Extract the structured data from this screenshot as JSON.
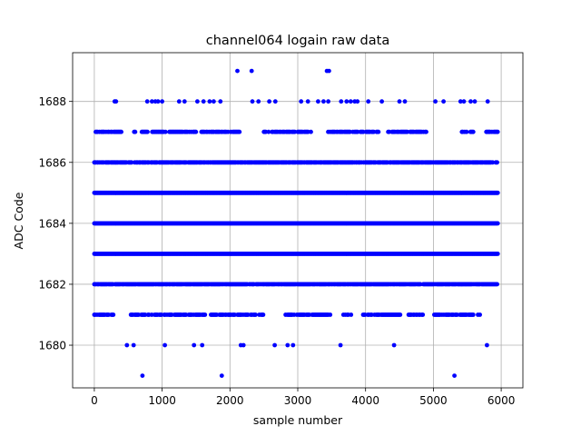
{
  "chart_data": {
    "type": "scatter",
    "title": "channel064 logain raw data",
    "xlabel": "sample number",
    "ylabel": "ADC Code",
    "xlim": [
      -320,
      6320
    ],
    "ylim": [
      1678.6,
      1689.6
    ],
    "xticks": [
      0,
      1000,
      2000,
      3000,
      4000,
      5000,
      6000
    ],
    "yticks": [
      1680,
      1682,
      1684,
      1686,
      1688
    ],
    "grid": true,
    "marker_color": "#0000ff",
    "n_samples": 5950,
    "dense_levels": [
      1683,
      1684,
      1685
    ],
    "medium_levels": [
      1682,
      1686
    ],
    "sparse_levels": [
      {
        "value": 1681,
        "ranges": [
          [
            0,
            280
          ],
          [
            540,
            1000
          ],
          [
            1030,
            1640
          ],
          [
            1720,
            2500
          ],
          [
            2820,
            3500
          ],
          [
            3660,
            3800
          ],
          [
            3950,
            4520
          ],
          [
            4620,
            4850
          ],
          [
            5000,
            5700
          ]
        ]
      },
      {
        "value": 1687,
        "ranges": [
          [
            20,
            420
          ],
          [
            560,
            620
          ],
          [
            700,
            1500
          ],
          [
            1580,
            2150
          ],
          [
            2500,
            2580
          ],
          [
            2620,
            3200
          ],
          [
            3420,
            4200
          ],
          [
            4320,
            4900
          ],
          [
            5420,
            5600
          ],
          [
            5780,
            5950
          ]
        ]
      }
    ],
    "series": [
      {
        "points": [
          [
            300,
            1688
          ],
          [
            320,
            1688
          ],
          [
            780,
            1688
          ],
          [
            850,
            1688
          ],
          [
            900,
            1688
          ],
          [
            940,
            1688
          ],
          [
            1000,
            1688
          ],
          [
            1250,
            1688
          ],
          [
            1330,
            1688
          ],
          [
            1520,
            1688
          ],
          [
            1610,
            1688
          ],
          [
            1700,
            1688
          ],
          [
            1760,
            1688
          ],
          [
            1860,
            1688
          ],
          [
            2330,
            1688
          ],
          [
            2420,
            1688
          ],
          [
            2580,
            1688
          ],
          [
            2670,
            1688
          ],
          [
            3050,
            1688
          ],
          [
            3150,
            1688
          ],
          [
            3300,
            1688
          ],
          [
            3380,
            1688
          ],
          [
            3450,
            1688
          ],
          [
            3640,
            1688
          ],
          [
            3720,
            1688
          ],
          [
            3780,
            1688
          ],
          [
            3840,
            1688
          ],
          [
            3880,
            1688
          ],
          [
            4040,
            1688
          ],
          [
            4240,
            1688
          ],
          [
            4500,
            1688
          ],
          [
            4580,
            1688
          ],
          [
            5030,
            1688
          ],
          [
            5150,
            1688
          ],
          [
            5400,
            1688
          ],
          [
            5450,
            1688
          ],
          [
            5550,
            1688
          ],
          [
            5610,
            1688
          ],
          [
            5800,
            1688
          ],
          [
            2110,
            1689
          ],
          [
            2320,
            1689
          ],
          [
            3430,
            1689
          ],
          [
            3460,
            1689
          ],
          [
            480,
            1680
          ],
          [
            580,
            1680
          ],
          [
            1040,
            1680
          ],
          [
            1470,
            1680
          ],
          [
            1590,
            1680
          ],
          [
            2160,
            1680
          ],
          [
            2200,
            1680
          ],
          [
            2660,
            1680
          ],
          [
            2850,
            1680
          ],
          [
            2930,
            1680
          ],
          [
            3630,
            1680
          ],
          [
            4420,
            1680
          ],
          [
            5790,
            1680
          ],
          [
            710,
            1679
          ],
          [
            1880,
            1679
          ],
          [
            5310,
            1679
          ]
        ]
      }
    ]
  }
}
